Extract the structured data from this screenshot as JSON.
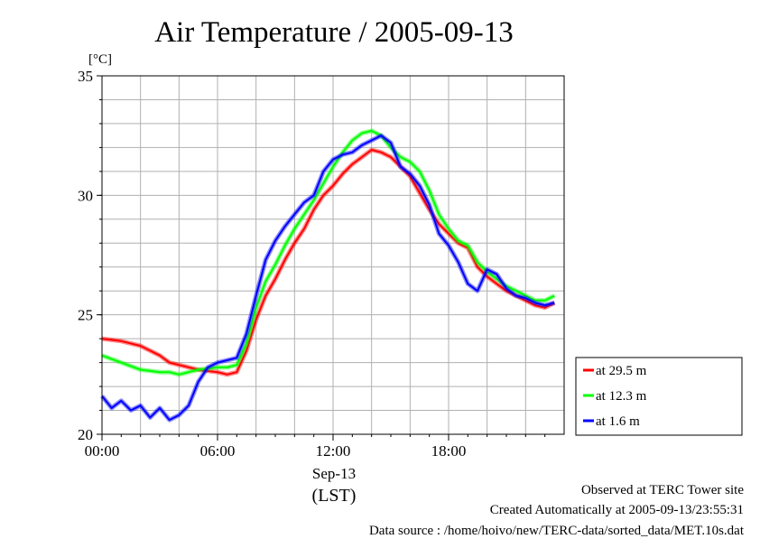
{
  "chart_data": {
    "type": "line",
    "title": "Air Temperature / 2005-09-13",
    "ylabel": "[°C]",
    "ylim": [
      20,
      35
    ],
    "yticks": [
      20,
      25,
      30,
      35
    ],
    "xlim": [
      0,
      24
    ],
    "xtick_labels": [
      "00:00",
      "06:00",
      "12:00",
      "18:00"
    ],
    "date_label": "Sep-13",
    "xunit_label": "(LST)",
    "grid": true,
    "legend": "right",
    "series": [
      {
        "name": "at 29.5 m",
        "color": "#ff0000",
        "x": [
          0,
          1,
          2,
          3,
          3.5,
          4,
          5,
          6,
          6.5,
          7,
          7.5,
          8,
          8.5,
          9,
          9.5,
          10,
          10.5,
          11,
          11.5,
          12,
          12.5,
          13,
          13.5,
          14,
          14.5,
          15,
          15.5,
          16,
          16.5,
          17,
          17.5,
          18,
          18.5,
          19,
          19.5,
          20,
          20.5,
          21,
          21.5,
          22,
          22.5,
          23,
          23.5
        ],
        "y": [
          24.0,
          23.9,
          23.7,
          23.3,
          23.0,
          22.9,
          22.7,
          22.6,
          22.5,
          22.6,
          23.5,
          24.8,
          25.8,
          26.5,
          27.3,
          28.0,
          28.6,
          29.4,
          30.0,
          30.4,
          30.9,
          31.3,
          31.6,
          31.9,
          31.8,
          31.6,
          31.2,
          30.8,
          30.1,
          29.4,
          28.8,
          28.4,
          28.0,
          27.8,
          27.0,
          26.6,
          26.3,
          26.0,
          25.8,
          25.6,
          25.4,
          25.3,
          25.5
        ]
      },
      {
        "name": "at 12.3 m",
        "color": "#00ff00",
        "x": [
          0,
          1,
          2,
          3,
          3.5,
          4,
          5,
          6,
          6.5,
          7,
          7.5,
          8,
          8.5,
          9,
          9.5,
          10,
          10.5,
          11,
          11.5,
          12,
          12.5,
          13,
          13.5,
          14,
          14.5,
          15,
          15.5,
          16,
          16.5,
          17,
          17.5,
          18,
          18.5,
          19,
          19.5,
          20,
          20.5,
          21,
          21.5,
          22,
          22.5,
          23,
          23.5
        ],
        "y": [
          23.3,
          23.0,
          22.7,
          22.6,
          22.6,
          22.5,
          22.7,
          22.8,
          22.8,
          22.9,
          23.8,
          25.3,
          26.4,
          27.1,
          27.9,
          28.6,
          29.2,
          29.8,
          30.5,
          31.2,
          31.8,
          32.3,
          32.6,
          32.7,
          32.5,
          32.0,
          31.6,
          31.4,
          31.0,
          30.2,
          29.2,
          28.6,
          28.1,
          27.9,
          27.2,
          26.8,
          26.5,
          26.2,
          26.0,
          25.8,
          25.6,
          25.6,
          25.8
        ]
      },
      {
        "name": "at 1.6 m",
        "color": "#0000ff",
        "x": [
          0,
          0.5,
          1,
          1.5,
          2,
          2.5,
          3,
          3.5,
          4,
          4.5,
          5,
          5.5,
          6,
          6.5,
          7,
          7.5,
          8,
          8.5,
          9,
          9.5,
          10,
          10.5,
          11,
          11.5,
          12,
          12.5,
          13,
          13.5,
          14,
          14.5,
          15,
          15.5,
          16,
          16.5,
          17,
          17.5,
          18,
          18.5,
          19,
          19.5,
          20,
          20.5,
          21,
          21.5,
          22,
          22.5,
          23,
          23.5
        ],
        "y": [
          21.6,
          21.1,
          21.4,
          21.0,
          21.2,
          20.7,
          21.1,
          20.6,
          20.8,
          21.2,
          22.2,
          22.8,
          23.0,
          23.1,
          23.2,
          24.2,
          25.8,
          27.3,
          28.1,
          28.7,
          29.2,
          29.7,
          30.0,
          31.0,
          31.5,
          31.7,
          31.8,
          32.1,
          32.3,
          32.5,
          32.2,
          31.2,
          30.9,
          30.4,
          29.6,
          28.4,
          27.9,
          27.2,
          26.3,
          26.0,
          26.9,
          26.7,
          26.1,
          25.8,
          25.7,
          25.5,
          25.4,
          25.5
        ]
      }
    ]
  },
  "footer": {
    "line1": "Observed at TERC Tower site",
    "line2": "Created Automatically at 2005-09-13/23:55:31",
    "line3": "Data source : /home/hoivo/new/TERC-data/sorted_data/MET.10s.dat"
  }
}
